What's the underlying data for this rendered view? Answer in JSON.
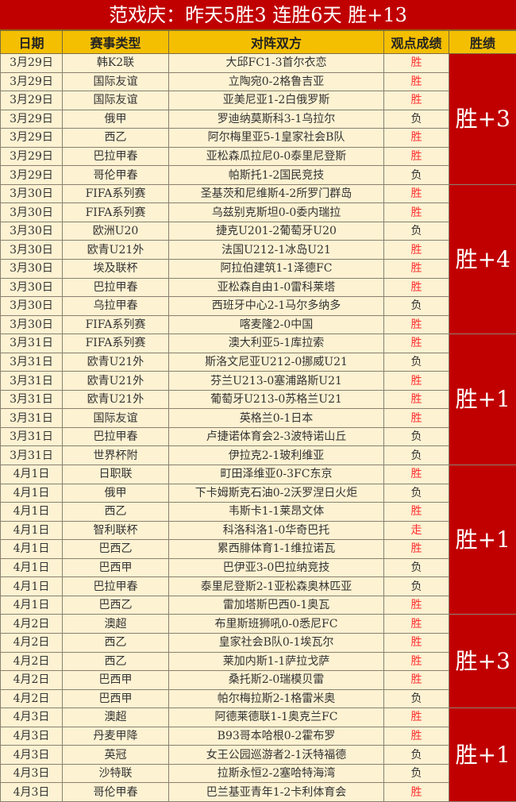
{
  "title": "范戏庆：昨天5胜3  连胜6天  胜+13",
  "headers": [
    "日期",
    "赛事类型",
    "对阵双方",
    "观点成绩",
    "胜绩"
  ],
  "colors": {
    "title_bg": "#c00000",
    "header_bg": "#f4bf00",
    "row_bg": "#fdf2d2",
    "win_text": "#ff3030",
    "score_bg": "#c00000"
  },
  "groups": [
    {
      "score": "胜+3",
      "rows": [
        [
          "3月29日",
          "韩K2联",
          "大邱FC1-3首尔衣恋",
          "胜"
        ],
        [
          "3月29日",
          "国际友谊",
          "立陶宛0-2格鲁吉亚",
          "胜"
        ],
        [
          "3月29日",
          "国际友谊",
          "亚美尼亚1-2白俄罗斯",
          "胜"
        ],
        [
          "3月29日",
          "俄甲",
          "罗迪纳莫斯科3-1乌拉尔",
          "负"
        ],
        [
          "3月29日",
          "西乙",
          "阿尔梅里亚5-1皇家社会B队",
          "胜"
        ],
        [
          "3月29日",
          "巴拉甲春",
          "亚松森瓜拉尼0-0泰里尼登斯",
          "胜"
        ],
        [
          "3月29日",
          "哥伦甲春",
          "帕斯托1-2国民竞技",
          "负"
        ]
      ]
    },
    {
      "score": "胜+4",
      "rows": [
        [
          "3月30日",
          "FIFA系列赛",
          "圣基茨和尼维斯4-2所罗门群岛",
          "胜"
        ],
        [
          "3月30日",
          "FIFA系列赛",
          "乌兹别克斯坦0-0委内瑞拉",
          "胜"
        ],
        [
          "3月30日",
          "欧洲U20",
          "捷克U201-2葡萄牙U20",
          "负"
        ],
        [
          "3月30日",
          "欧青U21外",
          "法国U212-1冰岛U21",
          "胜"
        ],
        [
          "3月30日",
          "埃及联杯",
          "阿拉伯建筑1-1泽德FC",
          "胜"
        ],
        [
          "3月30日",
          "巴拉甲春",
          "亚松森自由1-0雷科莱塔",
          "胜"
        ],
        [
          "3月30日",
          "乌拉甲春",
          "西班牙中心2-1马尔多纳多",
          "负"
        ],
        [
          "3月30日",
          "FIFA系列赛",
          "喀麦隆2-0中国",
          "胜"
        ]
      ]
    },
    {
      "score": "胜+1",
      "rows": [
        [
          "3月31日",
          "FIFA系列赛",
          "澳大利亚5-1库拉索",
          "胜"
        ],
        [
          "3月31日",
          "欧青U21外",
          "斯洛文尼亚U212-0挪威U21",
          "负"
        ],
        [
          "3月31日",
          "欧青U21外",
          "芬兰U213-0塞浦路斯U21",
          "胜"
        ],
        [
          "3月31日",
          "欧青U21外",
          "葡萄牙U213-0苏格兰U21",
          "胜"
        ],
        [
          "3月31日",
          "国际友谊",
          "英格兰0-1日本",
          "胜"
        ],
        [
          "3月31日",
          "巴拉甲春",
          "卢捷诺体育会2-3波特诺山丘",
          "负"
        ],
        [
          "3月31日",
          "世界杯附",
          "伊拉克2-1玻利维亚",
          "负"
        ]
      ]
    },
    {
      "score": "胜+1",
      "rows": [
        [
          "4月1日",
          "日职联",
          "町田泽维亚0-3FC东京",
          "胜"
        ],
        [
          "4月1日",
          "俄甲",
          "下卡姆斯克石油0-2沃罗涅日火炬",
          "负"
        ],
        [
          "4月1日",
          "西乙",
          "韦斯卡1-1莱昂文体",
          "胜"
        ],
        [
          "4月1日",
          "智利联杯",
          "科洛科洛1-0华奇巴托",
          "走"
        ],
        [
          "4月1日",
          "巴西乙",
          "累西腓体育1-1维拉诺瓦",
          "胜"
        ],
        [
          "4月1日",
          "巴西甲",
          "巴伊亚3-0巴拉纳竞技",
          "负"
        ],
        [
          "4月1日",
          "巴拉甲春",
          "泰里尼登斯2-1亚松森奥林匹亚",
          "负"
        ],
        [
          "4月1日",
          "巴西乙",
          "雷加塔斯巴西0-1奥瓦",
          "胜"
        ]
      ]
    },
    {
      "score": "胜+3",
      "rows": [
        [
          "4月2日",
          "澳超",
          "布里斯班狮吼0-0悉尼FC",
          "胜"
        ],
        [
          "4月2日",
          "西乙",
          "皇家社会B队0-1埃瓦尔",
          "胜"
        ],
        [
          "4月2日",
          "西乙",
          "莱加内斯1-1萨拉戈萨",
          "胜"
        ],
        [
          "4月2日",
          "巴西甲",
          "桑托斯2-0瑞模贝雷",
          "胜"
        ],
        [
          "4月2日",
          "巴西甲",
          "帕尔梅拉斯2-1格雷米奥",
          "负"
        ]
      ]
    },
    {
      "score": "胜+1",
      "rows": [
        [
          "4月3日",
          "澳超",
          "阿德莱德联1-1奥克兰FC",
          "胜"
        ],
        [
          "4月3日",
          "丹麦甲降",
          "B93哥本哈根0-2霍布罗",
          "胜"
        ],
        [
          "4月3日",
          "英冠",
          "女王公园巡游者2-1沃特福德",
          "负"
        ],
        [
          "4月3日",
          "沙特联",
          "拉斯永恒2-2塞哈特海湾",
          "负"
        ],
        [
          "4月3日",
          "哥伦甲春",
          "巴兰基亚青年1-2卡利体育会",
          "胜"
        ]
      ]
    }
  ]
}
